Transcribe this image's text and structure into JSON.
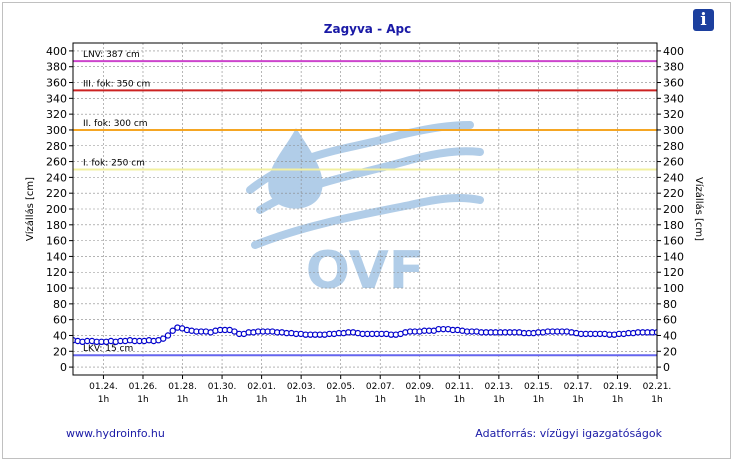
{
  "info_icon": "i",
  "footer": {
    "left": "www.hydroinfo.hu",
    "right": "Adatforrás: vízügyi igazgatóságok"
  },
  "watermark_text": "OVF",
  "colors": {
    "series": "#0000cc",
    "lnv": "#cc44cc",
    "level3": "#cc2222",
    "level2": "#f5a623",
    "level1": "#f2f0a0",
    "lkv": "#6666ee",
    "title": "#1a1aa6",
    "watermark": "#a9c8e6"
  },
  "chart_data": {
    "type": "line",
    "title": "Zagyva - Apc",
    "ylabel_left": "Vízállás [cm]",
    "ylabel_right": "Vízállás [cm]",
    "ylim": [
      -10,
      410
    ],
    "yticks": [
      0,
      20,
      40,
      60,
      80,
      100,
      120,
      140,
      160,
      180,
      200,
      220,
      240,
      260,
      280,
      300,
      320,
      340,
      360,
      380,
      400
    ],
    "grid": true,
    "x_start": "01.22. 12h",
    "x_end": "02.21. 1h",
    "xticks": [
      {
        "label": "01.24.",
        "sub": "1h",
        "day": 1.54
      },
      {
        "label": "01.26.",
        "sub": "1h",
        "day": 3.54
      },
      {
        "label": "01.28.",
        "sub": "1h",
        "day": 5.54
      },
      {
        "label": "01.30.",
        "sub": "1h",
        "day": 7.54
      },
      {
        "label": "02.01.",
        "sub": "1h",
        "day": 9.54
      },
      {
        "label": "02.03.",
        "sub": "1h",
        "day": 11.54
      },
      {
        "label": "02.05.",
        "sub": "1h",
        "day": 13.54
      },
      {
        "label": "02.07.",
        "sub": "1h",
        "day": 15.54
      },
      {
        "label": "02.09.",
        "sub": "1h",
        "day": 17.54
      },
      {
        "label": "02.11.",
        "sub": "1h",
        "day": 19.54
      },
      {
        "label": "02.13.",
        "sub": "1h",
        "day": 21.54
      },
      {
        "label": "02.15.",
        "sub": "1h",
        "day": 23.54
      },
      {
        "label": "02.17.",
        "sub": "1h",
        "day": 25.54
      },
      {
        "label": "02.19.",
        "sub": "1h",
        "day": 27.54
      },
      {
        "label": "02.21.",
        "sub": "1h",
        "day": 29.54
      }
    ],
    "reference_lines": [
      {
        "label": "LNV: 387 cm",
        "value": 387,
        "color": "#cc44cc"
      },
      {
        "label": "III. fok: 350 cm",
        "value": 350,
        "color": "#cc2222"
      },
      {
        "label": "II. fok: 300 cm",
        "value": 300,
        "color": "#f5a623"
      },
      {
        "label": "I. fok: 250 cm",
        "value": 250,
        "color": "#f2f0a0"
      },
      {
        "label": "LKV: 15 cm",
        "value": 15,
        "color": "#6666ee"
      }
    ],
    "series": [
      {
        "values": [
          34,
          33,
          32,
          33,
          33,
          32,
          32,
          32,
          33,
          32,
          33,
          33,
          34,
          33,
          33,
          33,
          34,
          33,
          34,
          36,
          40,
          46,
          50,
          49,
          47,
          46,
          45,
          45,
          45,
          44,
          46,
          47,
          47,
          47,
          45,
          42,
          42,
          44,
          44,
          45,
          45,
          45,
          45,
          44,
          44,
          43,
          43,
          42,
          42,
          41,
          41,
          41,
          41,
          41,
          42,
          42,
          43,
          43,
          44,
          44,
          43,
          42,
          42,
          42,
          42,
          42,
          42,
          41,
          41,
          42,
          44,
          45,
          45,
          45,
          46,
          46,
          46,
          48,
          48,
          48,
          47,
          47,
          46,
          45,
          45,
          45,
          44,
          44,
          44,
          44,
          44,
          44,
          44,
          44,
          44,
          43,
          43,
          43,
          44,
          44,
          45,
          45,
          45,
          45,
          45,
          44,
          43,
          42,
          42,
          42,
          42,
          42,
          42,
          41,
          41,
          42,
          42,
          43,
          43,
          44,
          44,
          44,
          44,
          44
        ]
      }
    ]
  }
}
